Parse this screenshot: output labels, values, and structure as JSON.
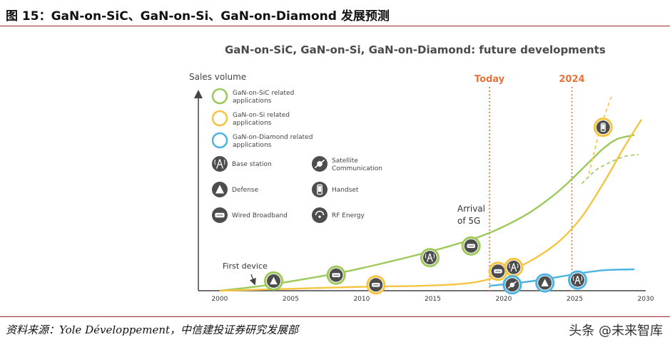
{
  "figure_title": "图 15：GaN-on-SiC、GaN-on-Si、GaN-on-Diamond 发展预测",
  "source_text": "资料来源：Yole Développement，中信建投证券研究发展部",
  "watermark": "头条 @未来智库",
  "chart_data": {
    "type": "line",
    "title": "GaN-on-SiC, GaN-on-Si, GaN-on-Diamond: future developments",
    "ylabel": "Sales volume",
    "xlabel": "",
    "x_ticks": [
      2000,
      2005,
      2010,
      2015,
      2020,
      2025,
      2030
    ],
    "xlim": [
      1998.5,
      2030
    ],
    "ylim": [
      0,
      100
    ],
    "markers": [
      {
        "label": "Today",
        "x": 2019.0,
        "color": "#E8733A"
      },
      {
        "label": "2024",
        "x": 2024.8,
        "color": "#E8733A"
      }
    ],
    "annotations": [
      {
        "text": "First device"
      },
      {
        "text": "Arrival of 5G"
      }
    ],
    "series": [
      {
        "name": "GaN-on-SiC related applications",
        "color": "#9DC85A",
        "x": [
          2000,
          2003,
          2006,
          2009,
          2012,
          2015,
          2018,
          2020,
          2022,
          2024,
          2026,
          2027,
          2028,
          2029.2
        ],
        "y": [
          0,
          2.5,
          6,
          10,
          15,
          20.5,
          27,
          33,
          41,
          52,
          66,
          73,
          78,
          80
        ]
      },
      {
        "name": "GaN-on-Si related applications",
        "color": "#F5C542",
        "x": [
          2000,
          2005,
          2010,
          2014,
          2017,
          2019,
          2021,
          2022.5,
          2024,
          2025.5,
          2027,
          2028.5,
          2029.7
        ],
        "y": [
          0,
          1,
          2,
          2.5,
          3.5,
          6,
          12,
          18,
          26,
          38,
          55,
          74,
          88
        ]
      },
      {
        "name": "GaN-on-Diamond related applications",
        "color": "#4DB3E0",
        "x": [
          2019.0,
          2021,
          2023,
          2025,
          2027,
          2029.2
        ],
        "y": [
          2.5,
          4,
          6,
          8.5,
          10.5,
          11
        ]
      }
    ],
    "dashed_projections": [
      {
        "series": "GaN-on-SiC related applications",
        "x": [
          2025.5,
          2026.5,
          2027.5,
          2028.5,
          2029.5
        ],
        "y": [
          55,
          62,
          66,
          69,
          70
        ]
      },
      {
        "series": "GaN-on-Si related applications",
        "x": [
          2026.0,
          2026.6,
          2027.2,
          2027.6
        ],
        "y": [
          60,
          78,
          92,
          100
        ]
      }
    ],
    "legend": {
      "placement": "top-left",
      "series_entries": [
        "GaN-on-SiC related applications",
        "GaN-on-Si related applications",
        "GaN-on-Diamond related applications"
      ],
      "application_entries": [
        {
          "label": "Base station",
          "icon": "base-station-icon"
        },
        {
          "label": "Satellite Communication",
          "icon": "satellite-icon"
        },
        {
          "label": "Defense",
          "icon": "defense-icon"
        },
        {
          "label": "Handset",
          "icon": "handset-icon"
        },
        {
          "label": "Wired Broadband",
          "icon": "wired-broadband-icon"
        },
        {
          "label": "RF Energy",
          "icon": "rf-energy-icon"
        }
      ]
    },
    "application_points": [
      {
        "x": 2003.8,
        "y": 5,
        "icon": "defense-icon",
        "ring": "#9DC85A"
      },
      {
        "x": 2008.2,
        "y": 8,
        "icon": "wired-broadband-icon",
        "ring": "#9DC85A"
      },
      {
        "x": 2011.0,
        "y": 3,
        "icon": "wired-broadband-icon",
        "ring": "#F5C542"
      },
      {
        "x": 2014.8,
        "y": 17,
        "icon": "base-station-icon",
        "ring": "#9DC85A"
      },
      {
        "x": 2017.7,
        "y": 23,
        "icon": "wired-broadband-icon",
        "ring": "#9DC85A"
      },
      {
        "x": 2019.6,
        "y": 10,
        "icon": "wired-broadband-icon",
        "ring": "#F5C542"
      },
      {
        "x": 2020.7,
        "y": 12,
        "icon": "base-station-icon",
        "ring": "#F5C542"
      },
      {
        "x": 2020.6,
        "y": 3,
        "icon": "satellite-icon",
        "ring": "#4DB3E0"
      },
      {
        "x": 2022.9,
        "y": 4,
        "icon": "defense-icon",
        "ring": "#4DB3E0"
      },
      {
        "x": 2025.2,
        "y": 5.5,
        "icon": "base-station-icon",
        "ring": "#4DB3E0"
      },
      {
        "x": 2027.0,
        "y": 84,
        "icon": "handset-icon",
        "ring": "#F5C542"
      }
    ]
  }
}
